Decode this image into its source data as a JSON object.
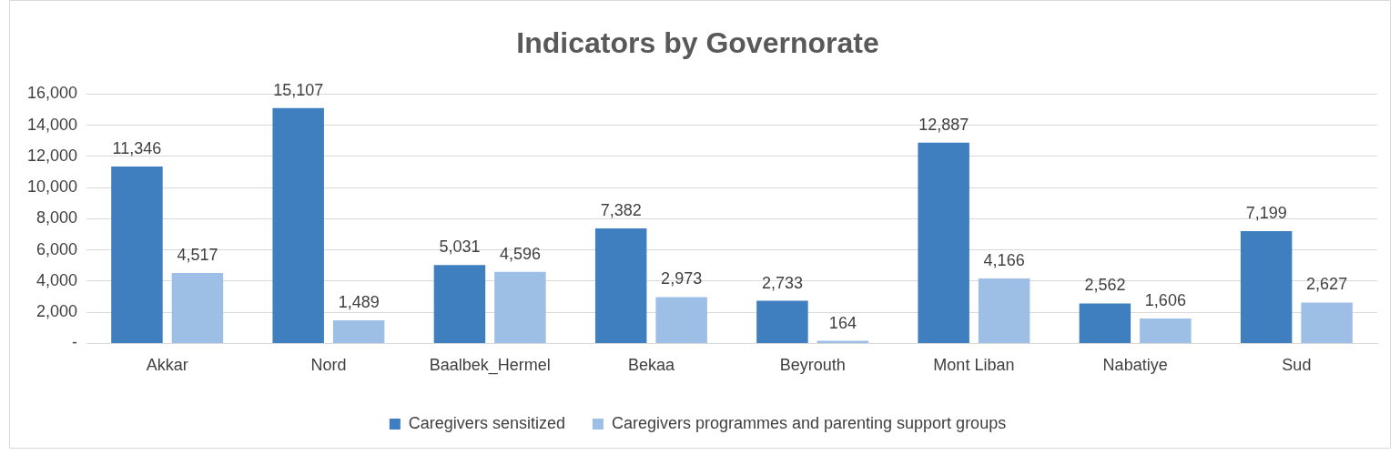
{
  "chart_data": {
    "type": "bar",
    "title": "Indicators by Governorate",
    "categories": [
      "Akkar",
      "Nord",
      "Baalbek_Hermel",
      "Bekaa",
      "Beyrouth",
      "Mont Liban",
      "Nabatiye",
      "Sud"
    ],
    "series": [
      {
        "name": "Caregivers sensitized",
        "color": "#3f7ebf",
        "values": [
          11346,
          15107,
          5031,
          7382,
          2733,
          12887,
          2562,
          7199
        ],
        "value_labels": [
          "11,346",
          "15,107",
          "5,031",
          "7,382",
          "2,733",
          "12,887",
          "2,562",
          "7,199"
        ]
      },
      {
        "name": "Caregivers programmes and parenting support groups",
        "color": "#9dbfe6",
        "values": [
          4517,
          1489,
          4596,
          2973,
          164,
          4166,
          1606,
          2627
        ],
        "value_labels": [
          "4,517",
          "1,489",
          "4,596",
          "2,973",
          "164",
          "4,166",
          "1,606",
          "2,627"
        ]
      }
    ],
    "ylim": [
      0,
      16000
    ],
    "yticks": [
      {
        "value": 0,
        "label": "-"
      },
      {
        "value": 2000,
        "label": "2,000"
      },
      {
        "value": 4000,
        "label": "4,000"
      },
      {
        "value": 6000,
        "label": "6,000"
      },
      {
        "value": 8000,
        "label": "8,000"
      },
      {
        "value": 10000,
        "label": "10,000"
      },
      {
        "value": 12000,
        "label": "12,000"
      },
      {
        "value": 14000,
        "label": "14,000"
      },
      {
        "value": 16000,
        "label": "16,000"
      }
    ],
    "grid": "y",
    "legend": "bottom"
  }
}
